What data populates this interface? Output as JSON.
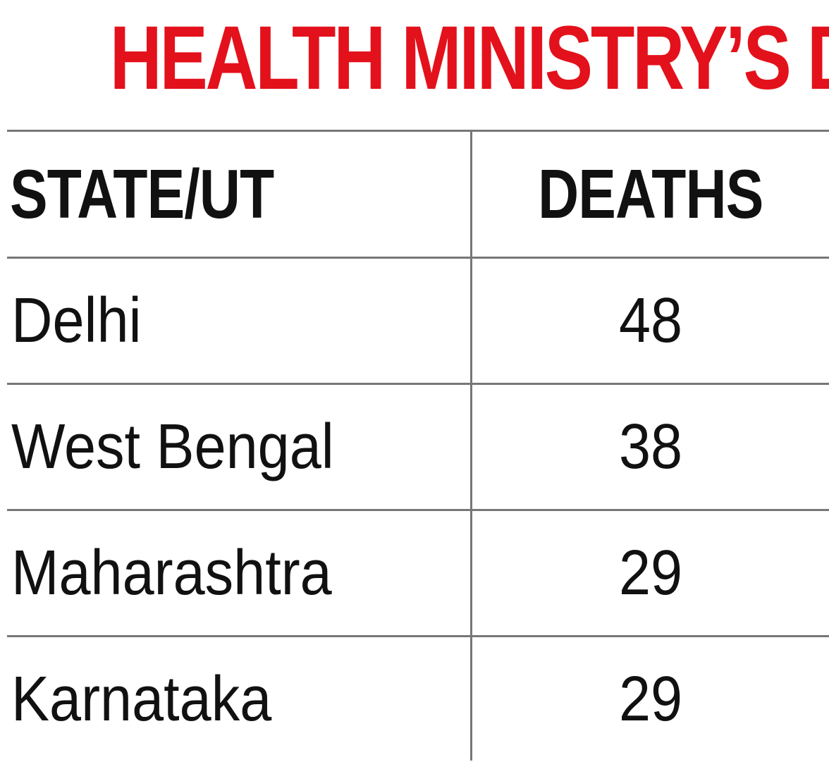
{
  "colors": {
    "title": "#e3111b",
    "text": "#111111",
    "rules": "#777777"
  },
  "chart_data": {
    "type": "table",
    "title": "HEALTH MINISTRY’S DATA",
    "columns": [
      "STATE/UT",
      "DEATHS"
    ],
    "rows": [
      {
        "state": "Delhi",
        "deaths": "48"
      },
      {
        "state": "West Bengal",
        "deaths": "38"
      },
      {
        "state": "Maharashtra",
        "deaths": "29"
      },
      {
        "state": "Karnataka",
        "deaths": "29"
      }
    ]
  }
}
